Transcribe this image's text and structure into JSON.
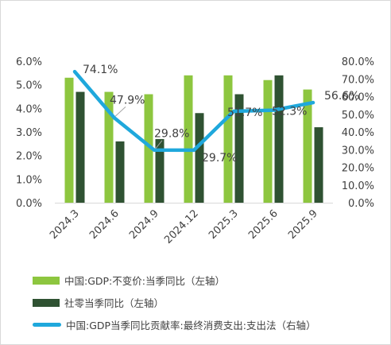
{
  "chart_data": {
    "type": "bar",
    "categories": [
      "2024.3",
      "2024.6",
      "2024.9",
      "2024.12",
      "2025.3",
      "2025.6",
      "2025.9"
    ],
    "y_left": {
      "min": 0,
      "max": 6.0,
      "step": 1.0,
      "ticks": [
        "0.0%",
        "1.0%",
        "2.0%",
        "3.0%",
        "4.0%",
        "5.0%",
        "6.0%"
      ]
    },
    "y_right": {
      "min": 0,
      "max": 80,
      "step": 10,
      "ticks": [
        "0.0%",
        "10.0%",
        "20.0%",
        "30.0%",
        "40.0%",
        "50.0%",
        "60.0%",
        "70.0%",
        "80.0%"
      ]
    },
    "series": [
      {
        "name": "中国:GDP:不变价:当季同比（左轴）",
        "kind": "bar",
        "axis": "left",
        "color": "#8dc63f",
        "values": [
          5.3,
          4.7,
          4.6,
          5.4,
          5.4,
          5.2,
          4.8
        ]
      },
      {
        "name": "社零当季同比（左轴）",
        "kind": "bar",
        "axis": "left",
        "color": "#2f5232",
        "values": [
          4.7,
          2.6,
          2.7,
          3.8,
          4.6,
          5.4,
          3.2
        ]
      },
      {
        "name": "中国:GDP当季同比贡献率:最终消费支出:支出法（右轴）",
        "kind": "line",
        "axis": "right",
        "color": "#1fa8dc",
        "values": [
          74.1,
          47.9,
          29.8,
          29.7,
          51.7,
          52.3,
          56.6
        ],
        "labels": [
          "74.1%",
          "47.9%",
          "29.8%",
          "29.7%",
          "51.7%",
          "52.3%",
          "56.6%"
        ]
      }
    ],
    "legend_position": "bottom",
    "grid": false
  }
}
